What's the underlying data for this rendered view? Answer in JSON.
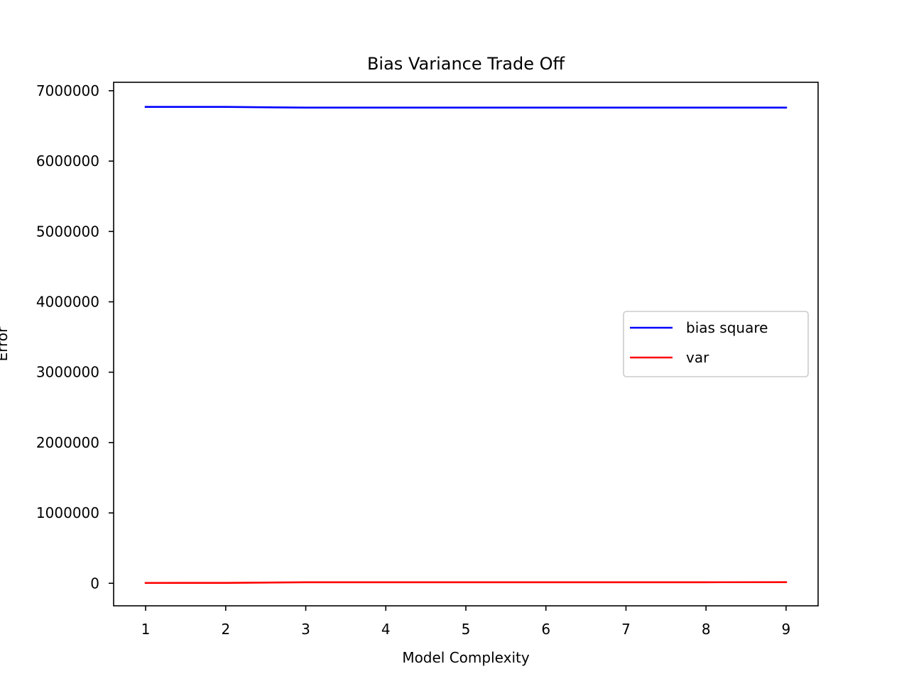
{
  "chart_data": {
    "type": "line",
    "title": "Bias Variance Trade Off",
    "xlabel": "Model Complexity",
    "ylabel": "Error",
    "x": [
      1,
      2,
      3,
      4,
      5,
      6,
      7,
      8,
      9
    ],
    "xlim": [
      0.6,
      9.4
    ],
    "ylim": [
      -320000,
      7120000
    ],
    "xticks": [
      1,
      2,
      3,
      4,
      5,
      6,
      7,
      8,
      9
    ],
    "yticks": [
      0,
      1000000,
      2000000,
      3000000,
      4000000,
      5000000,
      6000000,
      7000000
    ],
    "grid": false,
    "legend_position": "center-right",
    "series": [
      {
        "name": "bias square",
        "color": "#0000ff",
        "values": [
          6770000,
          6770000,
          6760000,
          6760000,
          6760000,
          6760000,
          6760000,
          6760000,
          6760000
        ]
      },
      {
        "name": "var",
        "color": "#ff0000",
        "values": [
          5000,
          6000,
          15000,
          15000,
          15000,
          15000,
          15000,
          15000,
          16000
        ]
      }
    ]
  }
}
